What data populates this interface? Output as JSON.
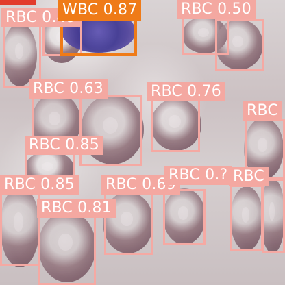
{
  "image": {
    "width": 416,
    "height": 416
  },
  "detections": [
    {
      "label": "RBC",
      "score": "0.49"
    },
    {
      "label": "WBC",
      "score": "0.87"
    },
    {
      "label": "RBC",
      "score": "0.50"
    },
    {
      "label": "RBC",
      "score": "0.63"
    },
    {
      "label": "RBC",
      "score": "0.76"
    },
    {
      "label": "RBC",
      "score": "0.85"
    },
    {
      "label": "RBC",
      "score": "0.85"
    },
    {
      "label": "RBC",
      "score": "0.69"
    },
    {
      "label": "RBC",
      "score": "0.81"
    },
    {
      "label": "RBC",
      "score": "0.?"
    },
    {
      "label": "RBC",
      "score": ""
    },
    {
      "label": "RBC",
      "score": ""
    }
  ],
  "palette": {
    "rbc_box": "#f5a9a3",
    "wbc_box": "#ef7b18",
    "text": "#ffffff",
    "accent_red": "#e23b2c"
  }
}
